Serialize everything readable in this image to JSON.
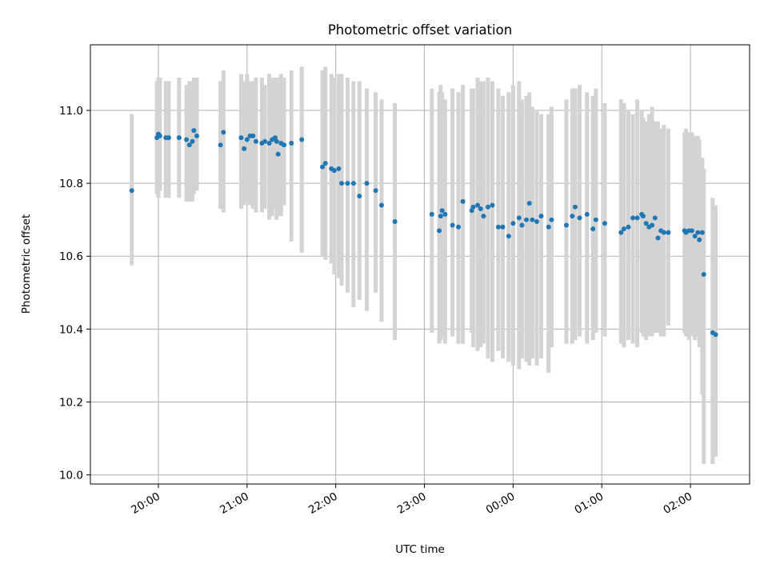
{
  "chart_data": {
    "type": "scatter",
    "title": "Photometric offset variation",
    "xlabel": "UTC time",
    "ylabel": "Photometric offset",
    "x_tick_labels": [
      "20:00",
      "21:00",
      "22:00",
      "23:00",
      "00:00",
      "01:00",
      "02:00"
    ],
    "x_tick_values": [
      1200,
      1260,
      1320,
      1380,
      1440,
      1500,
      1560
    ],
    "xlim": [
      1154,
      1600
    ],
    "y_ticks": [
      10.0,
      10.2,
      10.4,
      10.6,
      10.8,
      11.0
    ],
    "y_tick_labels": [
      "10.0",
      "10.2",
      "10.4",
      "10.6",
      "10.8",
      "11.0"
    ],
    "ylim": [
      9.975,
      11.18
    ],
    "grid": true,
    "marker_color": "#1f77b4",
    "errorbar_color": "#d3d3d3",
    "series": [
      {
        "x": [
          1182,
          1199,
          1200,
          1201,
          1205,
          1207,
          1214,
          1219,
          1221,
          1223,
          1224,
          1226,
          1242,
          1244,
          1256,
          1258,
          1260,
          1262,
          1264,
          1266,
          1270,
          1272,
          1275,
          1277,
          1279,
          1280,
          1281,
          1283,
          1285,
          1290,
          1297,
          1311,
          1313,
          1317,
          1319,
          1322,
          1324,
          1328,
          1332,
          1336,
          1341,
          1347,
          1351,
          1360,
          1385,
          1390,
          1391,
          1392,
          1394,
          1399,
          1403,
          1406,
          1412,
          1413,
          1416,
          1418,
          1420,
          1423,
          1426,
          1430,
          1433,
          1437,
          1440,
          1444,
          1446,
          1449,
          1451,
          1453,
          1456,
          1459,
          1464,
          1466,
          1476,
          1480,
          1482,
          1485,
          1490,
          1494,
          1496,
          1502,
          1513,
          1515,
          1518,
          1521,
          1524,
          1527,
          1528,
          1530,
          1532,
          1534,
          1536,
          1538,
          1540,
          1542,
          1545,
          1556,
          1557,
          1559,
          1561,
          1563,
          1565,
          1566,
          1568,
          1569,
          1575,
          1577
        ],
        "y": [
          10.78,
          10.925,
          10.935,
          10.93,
          10.925,
          10.925,
          10.925,
          10.92,
          10.905,
          10.915,
          10.945,
          10.93,
          10.905,
          10.94,
          10.925,
          10.895,
          10.92,
          10.93,
          10.93,
          10.915,
          10.91,
          10.915,
          10.91,
          10.92,
          10.925,
          10.915,
          10.88,
          10.91,
          10.905,
          10.91,
          10.92,
          10.845,
          10.855,
          10.84,
          10.835,
          10.84,
          10.8,
          10.8,
          10.8,
          10.765,
          10.8,
          10.78,
          10.74,
          10.695,
          10.715,
          10.67,
          10.71,
          10.725,
          10.715,
          10.685,
          10.68,
          10.75,
          10.725,
          10.735,
          10.74,
          10.73,
          10.71,
          10.735,
          10.74,
          10.68,
          10.68,
          10.655,
          10.69,
          10.705,
          10.685,
          10.7,
          10.745,
          10.7,
          10.695,
          10.71,
          10.68,
          10.7,
          10.685,
          10.71,
          10.735,
          10.705,
          10.715,
          10.675,
          10.7,
          10.69,
          10.665,
          10.675,
          10.68,
          10.705,
          10.705,
          10.715,
          10.71,
          10.69,
          10.68,
          10.685,
          10.705,
          10.65,
          10.67,
          10.665,
          10.665,
          10.67,
          10.665,
          10.67,
          10.67,
          10.655,
          10.665,
          10.645,
          10.665,
          10.55,
          10.39,
          10.385
        ],
        "yerr_low": [
          10.575,
          10.77,
          10.76,
          10.78,
          10.76,
          10.76,
          10.76,
          10.75,
          10.75,
          10.75,
          10.77,
          10.78,
          10.73,
          10.72,
          10.73,
          10.74,
          10.75,
          10.74,
          10.73,
          10.72,
          10.72,
          10.73,
          10.7,
          10.71,
          10.73,
          10.7,
          10.71,
          10.71,
          10.74,
          10.64,
          10.61,
          10.6,
          10.59,
          10.58,
          10.55,
          10.54,
          10.52,
          10.5,
          10.46,
          10.48,
          10.45,
          10.5,
          10.42,
          10.37,
          10.39,
          10.36,
          10.37,
          10.38,
          10.36,
          10.38,
          10.36,
          10.36,
          10.39,
          10.35,
          10.34,
          10.35,
          10.36,
          10.32,
          10.31,
          10.34,
          10.32,
          10.31,
          10.3,
          10.29,
          10.32,
          10.31,
          10.3,
          10.32,
          10.3,
          10.32,
          10.28,
          10.35,
          10.36,
          10.36,
          10.37,
          10.38,
          10.36,
          10.37,
          10.39,
          10.38,
          10.36,
          10.35,
          10.37,
          10.36,
          10.35,
          10.39,
          10.38,
          10.37,
          10.38,
          10.38,
          10.39,
          10.39,
          10.38,
          10.38,
          10.41,
          10.39,
          10.38,
          10.37,
          10.38,
          10.37,
          10.38,
          10.35,
          10.22,
          10.03,
          10.03,
          10.05
        ],
        "yerr_high": [
          10.99,
          11.08,
          11.09,
          11.09,
          11.08,
          11.08,
          11.09,
          11.07,
          11.08,
          11.08,
          11.09,
          11.09,
          11.08,
          11.11,
          11.1,
          11.08,
          11.1,
          11.08,
          11.08,
          11.09,
          11.09,
          11.07,
          11.1,
          11.09,
          11.09,
          11.08,
          11.09,
          11.1,
          11.09,
          11.11,
          11.12,
          11.11,
          11.12,
          11.1,
          11.09,
          11.1,
          11.1,
          11.09,
          11.08,
          11.08,
          11.06,
          11.05,
          11.03,
          11.02,
          11.06,
          11.05,
          11.07,
          11.05,
          11.03,
          11.06,
          11.05,
          11.07,
          11.06,
          11.06,
          11.09,
          11.08,
          11.08,
          11.09,
          11.08,
          11.06,
          11.04,
          11.05,
          11.07,
          11.08,
          11.03,
          11.04,
          11.05,
          11.01,
          11.0,
          10.99,
          10.99,
          11.01,
          11.03,
          11.06,
          11.06,
          11.07,
          11.05,
          11.04,
          11.06,
          11.02,
          11.03,
          11.02,
          11.0,
          10.99,
          11.03,
          11.0,
          10.98,
          10.97,
          10.99,
          11.01,
          10.97,
          10.97,
          10.95,
          10.96,
          10.95,
          10.94,
          10.95,
          10.94,
          10.94,
          10.93,
          10.93,
          10.92,
          10.87,
          10.84,
          10.76,
          10.74
        ]
      }
    ]
  }
}
